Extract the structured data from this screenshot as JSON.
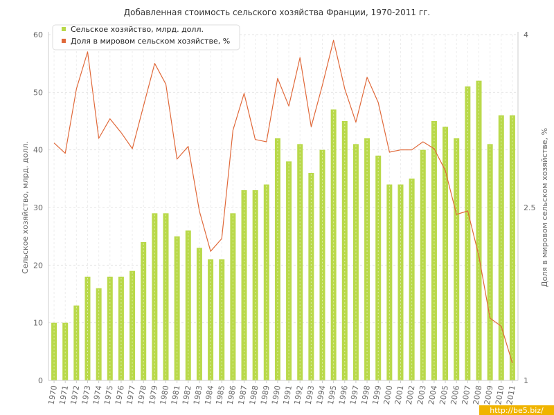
{
  "chart_data": {
    "type": "bar+line",
    "title": "Добавленная стоимость сельского хозяйства Франции, 1970-2011 гг.",
    "ylabel": "Сельское хозяйство, млрд. долл.",
    "y2label": "Доля в мировом сельском хозяйстве, %",
    "categories": [
      "1970",
      "1971",
      "1972",
      "1973",
      "1974",
      "1975",
      "1976",
      "1977",
      "1978",
      "1979",
      "1980",
      "1981",
      "1982",
      "1983",
      "1984",
      "1985",
      "1986",
      "1987",
      "1988",
      "1989",
      "1990",
      "1991",
      "1992",
      "1993",
      "1994",
      "1995",
      "1996",
      "1997",
      "1998",
      "1999",
      "2000",
      "2001",
      "2002",
      "2003",
      "2004",
      "2005",
      "2006",
      "2007",
      "2008",
      "2009",
      "2010",
      "2011"
    ],
    "series": [
      {
        "name": "Сельское хозяйство, млрд. долл.",
        "type": "bar",
        "axis": "left",
        "color": "#b9d94a",
        "values": [
          10,
          10,
          13,
          18,
          16,
          18,
          18,
          19,
          24,
          29,
          29,
          25,
          26,
          23,
          21,
          21,
          29,
          33,
          33,
          34,
          42,
          38,
          41,
          36,
          40,
          47,
          45,
          41,
          42,
          39,
          34,
          34,
          35,
          40,
          45,
          44,
          42,
          51,
          52,
          41,
          46,
          46
        ]
      },
      {
        "name": "Доля в мировом сельском хозяйстве, %",
        "type": "line",
        "axis": "right",
        "color": "#e0693a",
        "values": [
          3.06,
          2.97,
          3.53,
          3.85,
          3.1,
          3.27,
          3.15,
          3.01,
          3.38,
          3.75,
          3.57,
          2.92,
          3.03,
          2.47,
          2.12,
          2.23,
          3.17,
          3.49,
          3.09,
          3.07,
          3.62,
          3.38,
          3.8,
          3.2,
          3.56,
          3.95,
          3.53,
          3.24,
          3.63,
          3.41,
          2.98,
          3.0,
          3.0,
          3.07,
          3.01,
          2.82,
          2.44,
          2.47,
          2.08,
          1.54,
          1.47,
          1.15
        ]
      }
    ],
    "ylim": [
      0,
      60
    ],
    "y_ticks": [
      "0",
      "10",
      "20",
      "30",
      "40",
      "50",
      "60"
    ],
    "y2lim": [
      1,
      4
    ],
    "y2_ticks": [
      "1",
      "2.5",
      "4"
    ],
    "grid": true,
    "legend_position": "top-left"
  },
  "watermark": "http://be5.biz/"
}
